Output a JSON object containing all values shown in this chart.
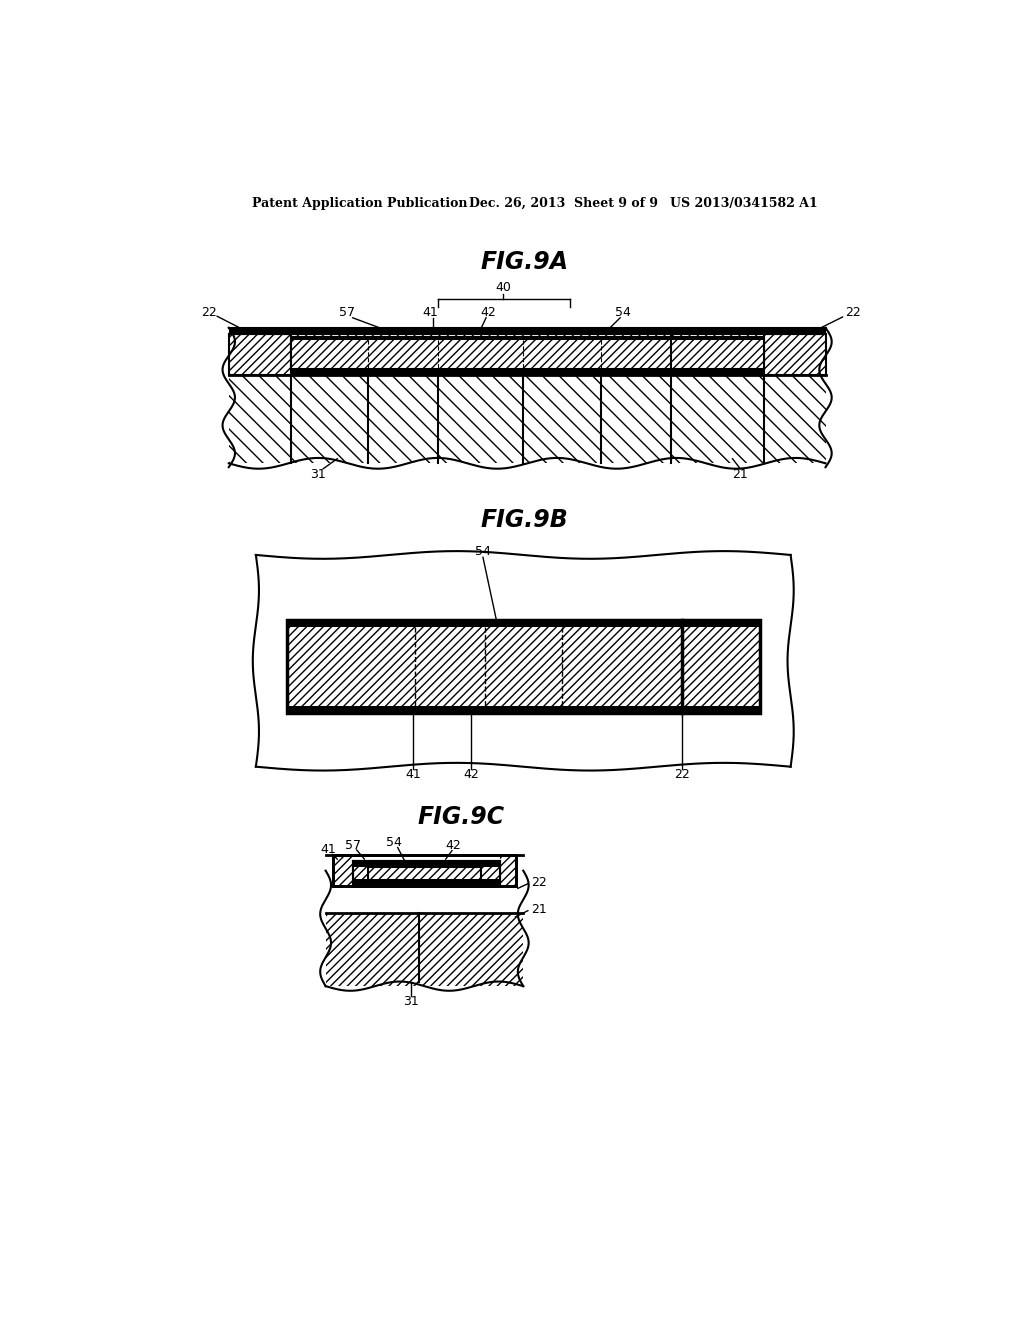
{
  "background_color": "#ffffff",
  "header_left": "Patent Application Publication",
  "header_center": "Dec. 26, 2013  Sheet 9 of 9",
  "header_right": "US 2013/0341582 A1",
  "fig9a_title": "FIG.9A",
  "fig9b_title": "FIG.9B",
  "fig9c_title": "FIG.9C"
}
